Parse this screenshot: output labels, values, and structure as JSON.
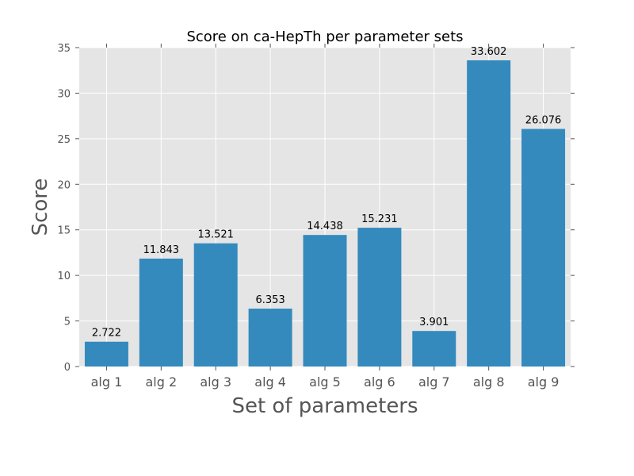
{
  "chart_data": {
    "type": "bar",
    "title": "Score on ca-HepTh per parameter sets",
    "xlabel": "Set of parameters",
    "ylabel": "Score",
    "categories": [
      "alg 1",
      "alg 2",
      "alg 3",
      "alg 4",
      "alg 5",
      "alg 6",
      "alg 7",
      "alg 8",
      "alg 9"
    ],
    "values": [
      2.722,
      11.843,
      13.521,
      6.353,
      14.438,
      15.231,
      3.901,
      33.602,
      26.076
    ],
    "value_labels": [
      "2.722",
      "11.843",
      "13.521",
      "6.353",
      "14.438",
      "15.231",
      "3.901",
      "33.602",
      "26.076"
    ],
    "ylim": [
      0,
      35
    ],
    "yticks": [
      0,
      5,
      10,
      15,
      20,
      25,
      30,
      35
    ],
    "ytick_labels": [
      "0",
      "5",
      "10",
      "15",
      "20",
      "25",
      "30",
      "35"
    ],
    "grid": true,
    "legend": "none",
    "colors": {
      "bar": "#348abd",
      "plot_background": "#e5e5e5",
      "grid": "#ffffff",
      "text": "#555555"
    }
  }
}
